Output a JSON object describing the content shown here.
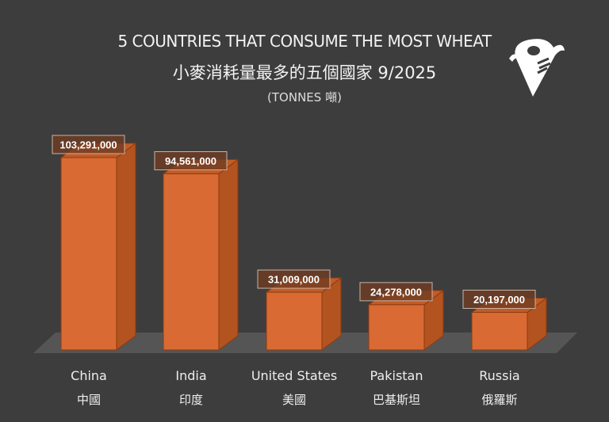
{
  "chart_data": {
    "type": "bar",
    "title": "5 COUNTRIES THAT CONSUME THE MOST WHEAT",
    "subtitle": "小麥消耗量最多的五個國家 9/2025",
    "unit_label": "(TONNES 噸)",
    "categories": [
      "China",
      "India",
      "United States",
      "Pakistan",
      "Russia"
    ],
    "categories_zh": [
      "中國",
      "印度",
      "美國",
      "巴基斯坦",
      "俄羅斯"
    ],
    "values": [
      103291000,
      94561000,
      31009000,
      24278000,
      20197000
    ],
    "data_labels": [
      "103,291,000",
      "94,561,000",
      "31,009,000",
      "24,278,000",
      "20,197,000"
    ],
    "style": "3d-column",
    "grid": false,
    "legend": "none",
    "colors": {
      "bar_front": "#d96a33",
      "bar_side": "#b3531f",
      "bar_top": "#c25c26",
      "background": "#3d3d3d",
      "floor": "#555555"
    }
  },
  "logo": {
    "icon": "spoon-fork-location-pin-icon"
  }
}
